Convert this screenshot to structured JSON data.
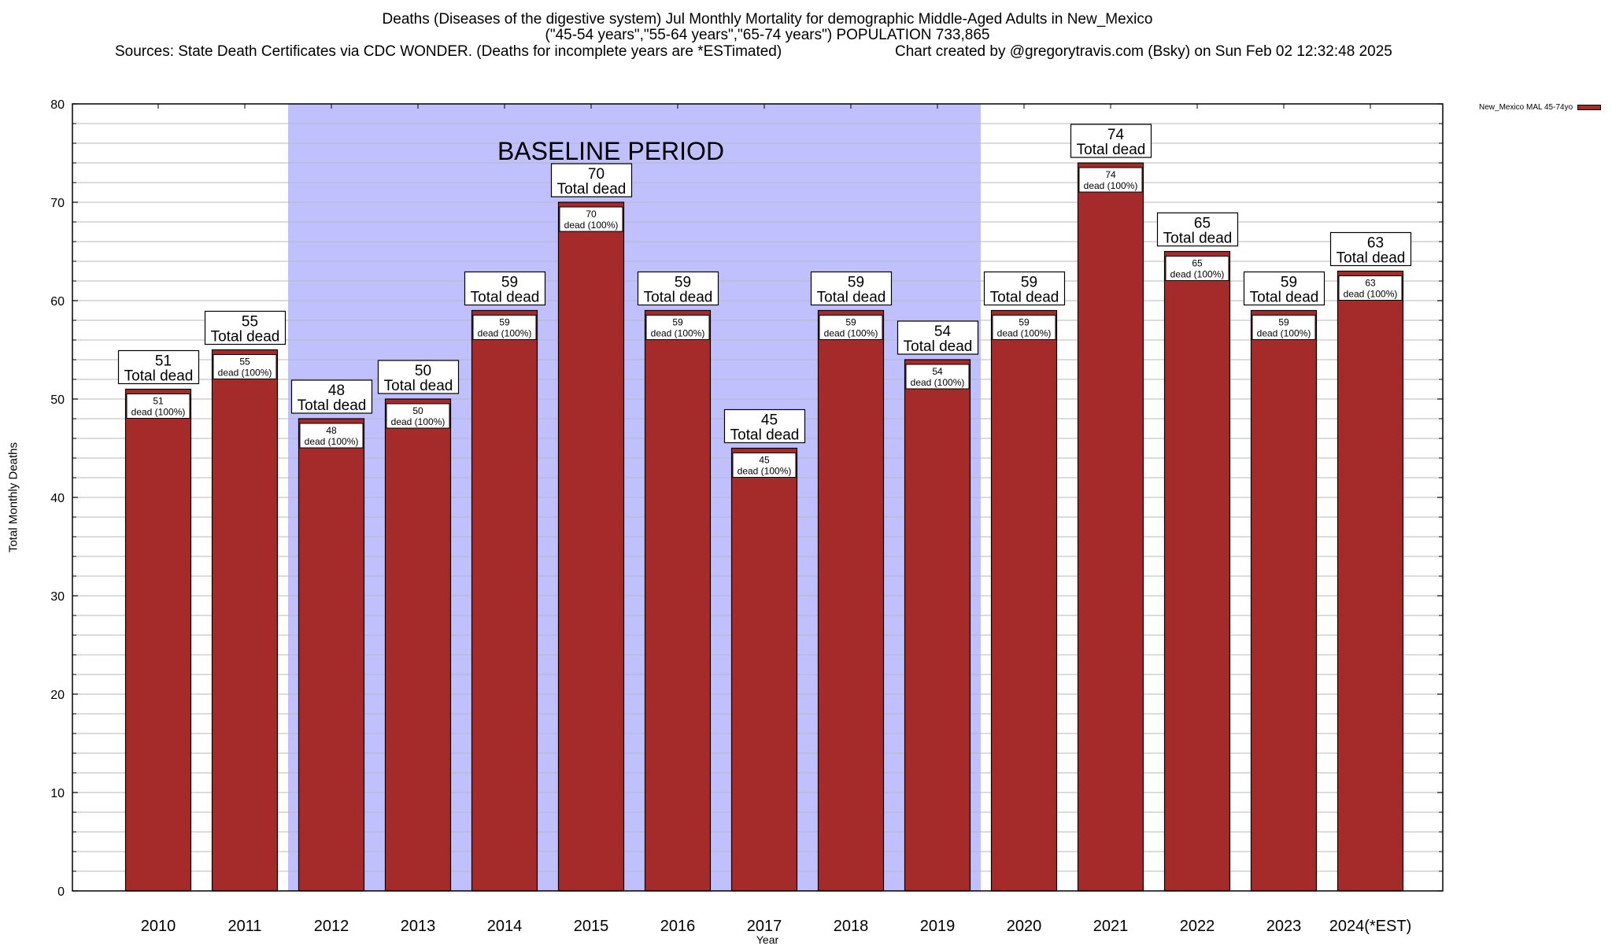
{
  "header": {
    "title_line1": "Deaths (Diseases of the digestive system) Jul Monthly Mortality for demographic Middle-Aged Adults in New_Mexico",
    "title_line2": "(\"45-54 years\",\"55-64 years\",\"65-74 years\") POPULATION 733,865",
    "sources": "Sources: State Death Certificates via CDC WONDER. (Deaths for incomplete years are *ESTimated)",
    "credit": "Chart created by @gregorytravis.com (Bsky) on Sun Feb 02 12:32:48 2025"
  },
  "colors": {
    "bar": "#a52a2a",
    "baseline_shade": "#c0c0ff",
    "grid": "#b8b8b8",
    "axis": "#000000"
  },
  "chart_data": {
    "type": "bar",
    "title": "Deaths (Diseases of the digestive system) Jul Monthly Mortality for demographic Middle-Aged Adults in New_Mexico",
    "xlabel": "Year",
    "ylabel": "Total Monthly Deaths",
    "ylim": [
      0,
      80
    ],
    "yticks": [
      0,
      10,
      20,
      30,
      40,
      50,
      60,
      70,
      80
    ],
    "grid": true,
    "legend_position": "outside-top-right",
    "categories": [
      "2010",
      "2011",
      "2012",
      "2013",
      "2014",
      "2015",
      "2016",
      "2017",
      "2018",
      "2019",
      "2020",
      "2021",
      "2022",
      "2023",
      "2024(*EST)"
    ],
    "series": [
      {
        "name": "New_Mexico MAL 45-74yo",
        "values": [
          51,
          55,
          48,
          50,
          59,
          70,
          59,
          45,
          59,
          54,
          59,
          74,
          65,
          59,
          63
        ]
      }
    ],
    "total_label_suffix": "Total dead",
    "inner_label_suffix": "dead (100%)",
    "annotation": {
      "text": "BASELINE PERIOD",
      "start_category": "2012",
      "end_category": "2019"
    }
  }
}
